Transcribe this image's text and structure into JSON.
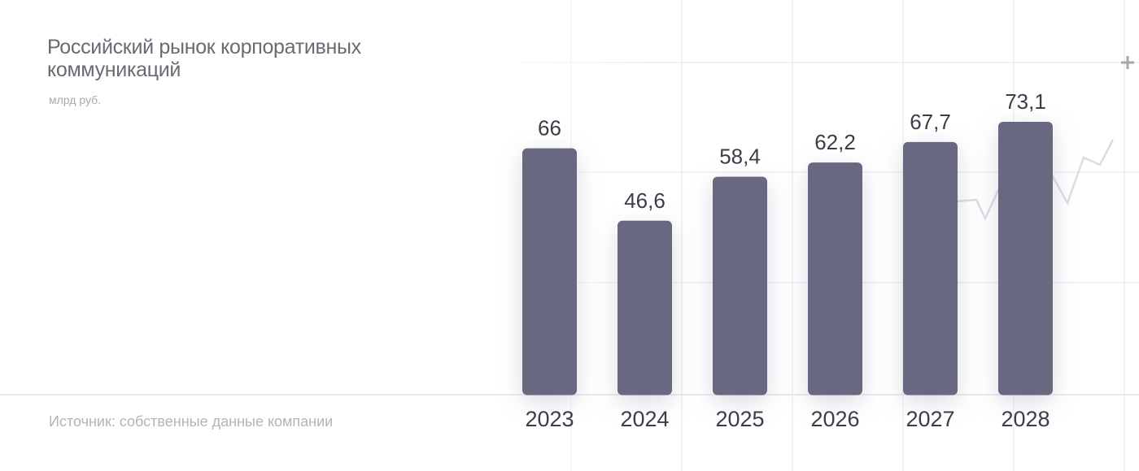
{
  "chart_data": {
    "type": "bar",
    "title": "Российский рынок корпоративных коммуникаций",
    "subtitle": "млрд руб.",
    "source": "Источник: собственные данные компании",
    "categories": [
      "2023",
      "2024",
      "2025",
      "2026",
      "2027",
      "2028"
    ],
    "values": [
      66,
      46.6,
      58.4,
      62.2,
      67.7,
      73.1
    ],
    "value_labels": [
      "66",
      "46,6",
      "58,4",
      "62,2",
      "67,7",
      "73,1"
    ],
    "xlabel": "",
    "ylabel": "",
    "ylim": [
      0,
      73.1
    ],
    "grid": false,
    "legend": "none",
    "colors": {
      "bar": "#676880",
      "text": "#3d3d4a",
      "background_lines": "#eeeef2"
    }
  },
  "decor": {
    "plus_icon": "plus-icon"
  }
}
